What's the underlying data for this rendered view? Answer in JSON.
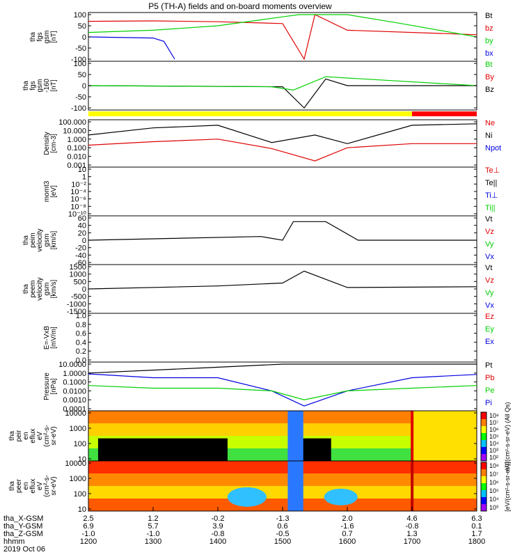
{
  "title": "P5 (TH-A) fields and on-board moments overview",
  "colors": {
    "black": "#000000",
    "red": "#e00000",
    "green": "#00d000",
    "blue": "#0000e0",
    "yellow": "#ffff00",
    "red_bar": "#ff0000"
  },
  "panels": [
    {
      "id": "p1",
      "ylabel": [
        "tha",
        "fgs",
        "gsm",
        "[nT]"
      ],
      "ticks": [
        "100",
        "50",
        "0",
        "-50",
        "-100"
      ],
      "legend": [
        {
          "t": "Bt",
          "c": "black"
        },
        {
          "t": "bz",
          "c": "red"
        },
        {
          "t": "by",
          "c": "green"
        },
        {
          "t": "bx",
          "c": "blue"
        }
      ]
    },
    {
      "id": "p2",
      "ylabel": [
        "tha",
        "fgs",
        "gsm",
        "-160",
        "[nT]"
      ],
      "ticks": [
        "100",
        "50",
        "0",
        "-50",
        "-100"
      ],
      "legend": [
        {
          "t": "Bt",
          "c": "green"
        },
        {
          "t": "By",
          "c": "red"
        },
        {
          "t": "Bz",
          "c": "black"
        }
      ]
    },
    {
      "id": "p3",
      "ylabel": [
        "Density",
        "[cm-3]"
      ],
      "ticks": [
        "100.000",
        "10.000",
        "1.000",
        "0.100",
        "0.010",
        "0.001"
      ],
      "legend": [
        {
          "t": "Ne",
          "c": "red"
        },
        {
          "t": "Ni",
          "c": "black"
        },
        {
          "t": "Npot",
          "c": "blue"
        }
      ]
    },
    {
      "id": "p4",
      "ylabel": [
        "momt3",
        "[eV]"
      ],
      "ticks": [
        "10",
        "1",
        "10⁻²",
        "10⁻⁴",
        "10⁻⁶",
        "10⁻⁸",
        "10⁻¹⁰"
      ],
      "legend": [
        {
          "t": "Te⊥",
          "c": "red"
        },
        {
          "t": "Te||",
          "c": "black"
        },
        {
          "t": "Ti⊥",
          "c": "blue"
        },
        {
          "t": "Ti||",
          "c": "green"
        }
      ]
    },
    {
      "id": "p5",
      "ylabel": [
        "tha",
        "peim",
        "velocity",
        "gsm",
        "[km/s]"
      ],
      "ticks": [
        "60",
        "40",
        "20",
        "0",
        "-20",
        "-40",
        "-60"
      ],
      "legend": [
        {
          "t": "Vt",
          "c": "black"
        },
        {
          "t": "Vz",
          "c": "red"
        },
        {
          "t": "Vy",
          "c": "green"
        },
        {
          "t": "Vx",
          "c": "blue"
        }
      ]
    },
    {
      "id": "p6",
      "ylabel": [
        "tha",
        "peem",
        "velocity",
        "gsm",
        "[km/s]"
      ],
      "ticks": [
        "1500",
        "1000",
        "500",
        "0",
        "-500",
        "-1000",
        "-1500"
      ],
      "legend": [
        {
          "t": "Vt",
          "c": "black"
        },
        {
          "t": "Vz",
          "c": "red"
        },
        {
          "t": "Vy",
          "c": "green"
        },
        {
          "t": "Vx",
          "c": "blue"
        }
      ]
    },
    {
      "id": "p7",
      "ylabel": [
        "E=-VxB",
        "[mV/m]"
      ],
      "ticks": [
        "1.0",
        "0.8",
        "0.6",
        "0.4",
        "0.2",
        "0.0"
      ],
      "legend": [
        {
          "t": "Ez",
          "c": "red"
        },
        {
          "t": "Ey",
          "c": "green"
        },
        {
          "t": "Ex",
          "c": "blue"
        }
      ]
    },
    {
      "id": "p8",
      "ylabel": [
        "Pressure",
        "[nPa]"
      ],
      "ticks": [
        "10.0000",
        "1.0000",
        "0.1000",
        "0.0100",
        "0.0010",
        "0.0001"
      ],
      "legend": [
        {
          "t": "Pt",
          "c": "black"
        },
        {
          "t": "Pb",
          "c": "red"
        },
        {
          "t": "Pe",
          "c": "green"
        },
        {
          "t": "Pi",
          "c": "blue"
        }
      ]
    },
    {
      "id": "p9",
      "ylabel": [
        "tha",
        "peir",
        "en",
        "eflux",
        "eV",
        "(cm²-s-",
        "sr-eV)"
      ],
      "ticks": [
        "10000",
        "1000",
        "100",
        "10"
      ],
      "legend": []
    },
    {
      "id": "p10",
      "ylabel": [
        "tha",
        "peer",
        "en",
        "eflux",
        "eV",
        "(cm²-s-",
        "sr-eV)"
      ],
      "ticks": [
        "10000",
        "1000",
        "100",
        "10"
      ],
      "legend": []
    }
  ],
  "colorbar1": {
    "ticks": [
      "10⁸",
      "10⁷",
      "10⁶",
      "10⁵",
      "10⁴",
      "10³",
      "10²"
    ],
    "label": "eV/(cm²-s-sr-eV) (All Qs)"
  },
  "colorbar2": {
    "ticks": [
      "10⁸",
      "10⁷",
      "10⁶",
      "10⁵",
      "10⁴",
      "10³"
    ],
    "label": "[eV/(cm²-s-sr-eV)]"
  },
  "xaxis": {
    "rows": [
      {
        "label": "tha_X-GSM",
        "values": [
          "2.5",
          "1.2",
          "-0.2",
          "-1.3",
          "2.0",
          "4.6",
          "6.3"
        ]
      },
      {
        "label": "tha_Y-GSM",
        "values": [
          "6.9",
          "5.7",
          "3.9",
          "0.6",
          "-1.6",
          "-0.8",
          "0.1"
        ]
      },
      {
        "label": "tha_Z-GSM",
        "values": [
          "-1.0",
          "-1.0",
          "-0.8",
          "-0.5",
          "0.7",
          "1.3",
          "1.7"
        ]
      },
      {
        "label": "hhmm",
        "values": [
          "1200",
          "1300",
          "1400",
          "1500",
          "1600",
          "1700",
          "1800"
        ]
      }
    ],
    "date": "2019 Oct 06"
  },
  "chart_data": {
    "type": "line",
    "title": "P5 (TH-A) fields and on-board moments overview",
    "x_label": "hhmm",
    "x_ticks": [
      "1200",
      "1300",
      "1400",
      "1500",
      "1600",
      "1700",
      "1800"
    ],
    "series": [
      {
        "name": "Ni",
        "panel": "Density",
        "x": [
          "1200",
          "1300",
          "1400",
          "1450",
          "1530",
          "1600",
          "1700",
          "1800"
        ],
        "values": [
          3,
          20,
          40,
          0.4,
          3,
          0.3,
          40,
          60
        ]
      },
      {
        "name": "Ne",
        "panel": "Density",
        "x": [
          "1200",
          "1300",
          "1400",
          "1450",
          "1530",
          "1600",
          "1700",
          "1800"
        ],
        "values": [
          0.2,
          0.5,
          1,
          0.08,
          0.003,
          0.1,
          0.3,
          0.3
        ]
      },
      {
        "name": "Pi",
        "panel": "Pressure",
        "x": [
          "1200",
          "1300",
          "1400",
          "1450",
          "1520",
          "1600",
          "1700",
          "1800"
        ],
        "values": [
          0.8,
          0.3,
          0.3,
          0.01,
          0.0002,
          0.01,
          0.3,
          0.7
        ]
      },
      {
        "name": "Pe",
        "panel": "Pressure",
        "x": [
          "1200",
          "1300",
          "1400",
          "1450",
          "1520",
          "1600",
          "1700",
          "1800"
        ],
        "values": [
          0.04,
          0.02,
          0.02,
          0.01,
          0.001,
          0.01,
          0.02,
          0.04
        ]
      }
    ],
    "notes": [
      "Orbit bar: yellow 1200-1700, red 1700-1800"
    ]
  }
}
